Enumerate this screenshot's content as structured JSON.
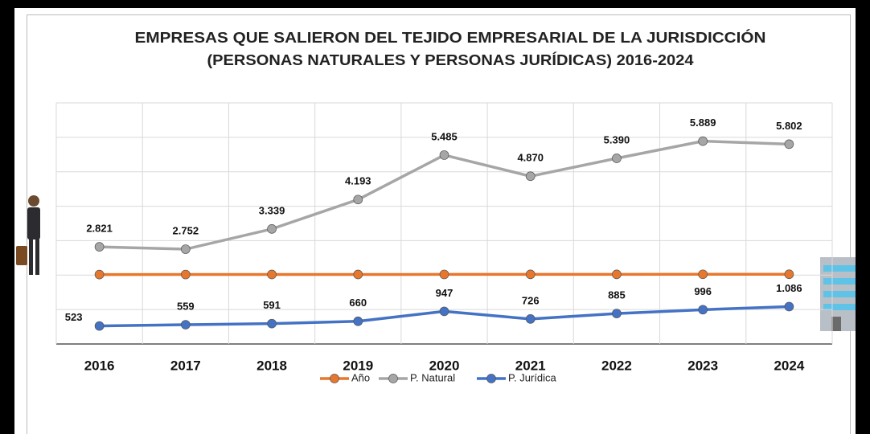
{
  "chart_data": {
    "type": "line",
    "title": "EMPRESAS QUE SALIERON DEL TEJIDO EMPRESARIAL DE LA JURISDICCIÓN",
    "subtitle": "(PERSONAS NATURALES Y PERSONAS JURÍDICAS) 2016-2024",
    "categories": [
      "2016",
      "2017",
      "2018",
      "2019",
      "2020",
      "2021",
      "2022",
      "2023",
      "2024"
    ],
    "series": [
      {
        "name": "Año",
        "color": "#e8772e",
        "values": [
          2016,
          2017,
          2018,
          2019,
          2020,
          2021,
          2022,
          2023,
          2024
        ]
      },
      {
        "name": "P. Natural",
        "color": "#a6a6a6",
        "values": [
          2821,
          2752,
          3339,
          4193,
          5485,
          4870,
          5390,
          5889,
          5802
        ],
        "value_labels": [
          "2.821",
          "2.752",
          "3.339",
          "4.193",
          "5.485",
          "4.870",
          "5.390",
          "5.889",
          "5.802"
        ]
      },
      {
        "name": "P. Jurídica",
        "color": "#4472c4",
        "values": [
          523,
          559,
          591,
          660,
          947,
          726,
          885,
          996,
          1086
        ],
        "value_labels": [
          "523",
          "559",
          "591",
          "660",
          "947",
          "726",
          "885",
          "996",
          "1.086"
        ]
      }
    ],
    "ylim": [
      0,
      7000
    ],
    "yticks": [
      0,
      1000,
      2000,
      3000,
      4000,
      5000,
      6000,
      7000
    ],
    "grid": true,
    "legend": "bottom"
  }
}
